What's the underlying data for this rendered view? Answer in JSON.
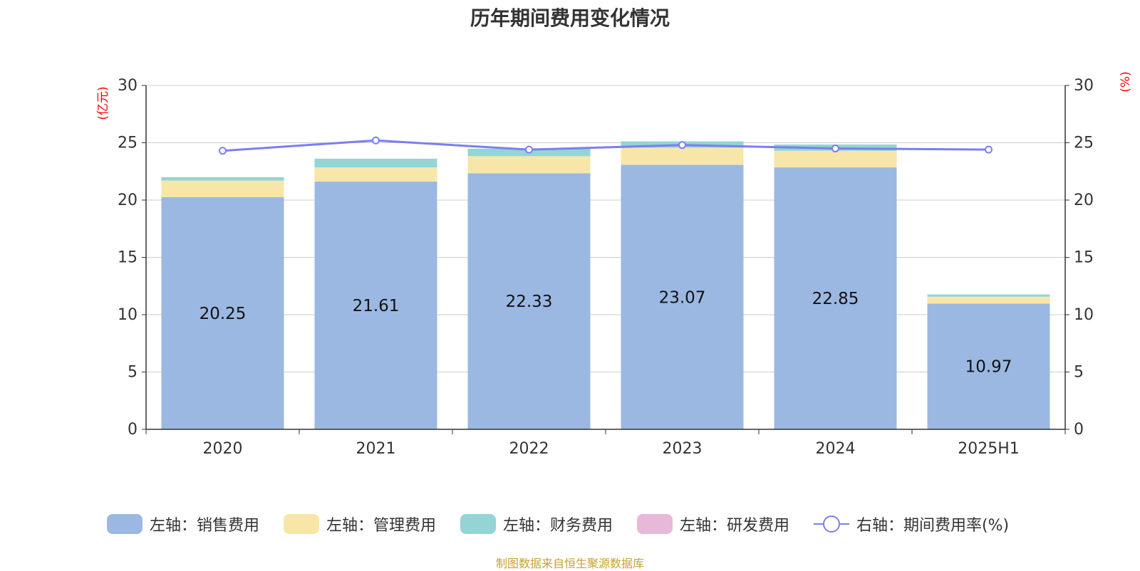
{
  "title": "历年期间费用变化情况",
  "source": "制图数据来自恒生聚源数据库",
  "colors": {
    "sales": "#9bb8e2",
    "admin": "#f8e6a8",
    "finance": "#94d4d4",
    "rd": "#e8b8d8",
    "rate": "#7b7ff0",
    "axis_unit": "#ff0000",
    "grid": "#cccccc",
    "axis": "#333333"
  },
  "chart_data": {
    "type": "bar",
    "stacked": true,
    "categories": [
      "2020",
      "2021",
      "2022",
      "2023",
      "2024",
      "2025H1"
    ],
    "left_axis_label": "(亿元)",
    "right_axis_label": "(%)",
    "ylim_left": [
      0,
      30
    ],
    "ylim_right": [
      0,
      30
    ],
    "ticks_left": [
      "0",
      "5",
      "10",
      "15",
      "20",
      "25",
      "30"
    ],
    "ticks_right": [
      "0",
      "5",
      "10",
      "15",
      "20",
      "25",
      "30"
    ],
    "grid": true,
    "legend_position": "bottom",
    "series": [
      {
        "name": "左轴：销售费用",
        "key": "sales",
        "axis": "left",
        "type": "bar",
        "values": [
          20.25,
          21.61,
          22.33,
          23.07,
          22.85,
          10.97
        ],
        "labels": [
          "20.25",
          "21.61",
          "22.33",
          "23.07",
          "22.85",
          "10.97"
        ]
      },
      {
        "name": "左轴：管理费用",
        "key": "admin",
        "axis": "left",
        "type": "bar",
        "values": [
          1.45,
          1.25,
          1.5,
          1.5,
          1.45,
          0.6
        ]
      },
      {
        "name": "左轴：财务费用",
        "key": "finance",
        "axis": "left",
        "type": "bar",
        "values": [
          0.3,
          0.75,
          0.65,
          0.55,
          0.55,
          0.2
        ]
      },
      {
        "name": "左轴：研发费用",
        "key": "rd",
        "axis": "left",
        "type": "bar",
        "values": [
          0,
          0,
          0,
          0,
          0,
          0
        ]
      },
      {
        "name": "右轴：期间费用率(%)",
        "key": "rate",
        "axis": "right",
        "type": "line",
        "values": [
          24.3,
          25.2,
          24.4,
          24.8,
          24.5,
          24.4
        ]
      }
    ]
  }
}
